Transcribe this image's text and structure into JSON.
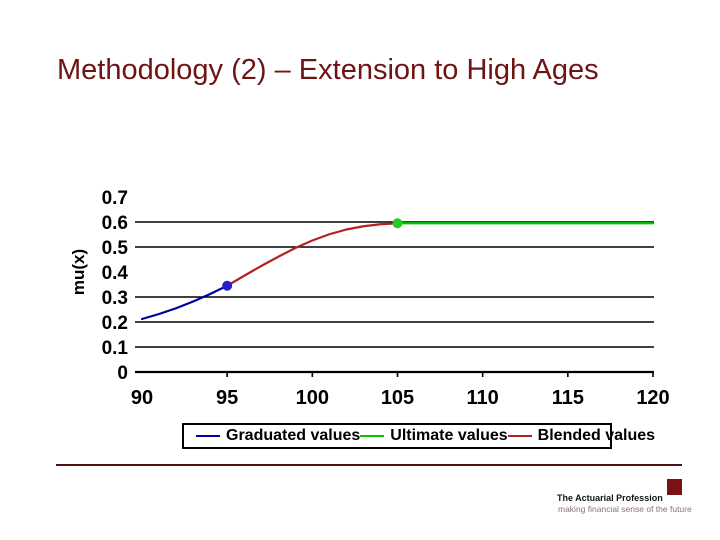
{
  "slide": {
    "title": "Methodology (2) – Extension to High Ages"
  },
  "chart_data": {
    "type": "line",
    "title": "",
    "xlabel": "",
    "ylabel": "mu(x)",
    "xlim": [
      90,
      120
    ],
    "ylim": [
      0,
      0.7
    ],
    "x_ticks": [
      90,
      95,
      100,
      105,
      110,
      115,
      120
    ],
    "y_ticks": [
      0,
      0.1,
      0.2,
      0.3,
      0.4,
      0.5,
      0.6,
      0.7
    ],
    "gridlines": [
      0.1,
      0.2,
      0.3,
      0.5,
      0.6
    ],
    "grid_on": true,
    "legend_position": "bottom",
    "series": [
      {
        "name": "Graduated values",
        "color": "#00009e",
        "x": [
          90,
          91,
          92,
          93,
          94,
          95
        ],
        "y": [
          0.212,
          0.232,
          0.255,
          0.282,
          0.312,
          0.345
        ],
        "marker": {
          "x": 95,
          "y": 0.345,
          "color": "#2222cc"
        }
      },
      {
        "name": "Ultimate values",
        "color": "#00c800",
        "x": [
          105,
          120
        ],
        "y": [
          0.595,
          0.595
        ],
        "marker": {
          "x": 105,
          "y": 0.595,
          "color": "#22cc22"
        }
      },
      {
        "name": "Blended values",
        "color": "#b22222",
        "x": [
          95,
          96,
          97,
          98,
          99,
          100,
          101,
          102,
          103,
          104,
          105
        ],
        "y": [
          0.345,
          0.385,
          0.424,
          0.461,
          0.496,
          0.526,
          0.551,
          0.57,
          0.583,
          0.591,
          0.595
        ]
      }
    ]
  },
  "footer": {
    "logo_title": "The Actuarial Profession",
    "logo_subtitle": "making financial sense of the future"
  },
  "colors": {
    "title_text": "#6e1414",
    "footer_rule": "#4e1212",
    "logo_square": "#7a1414",
    "axis": "#000000"
  }
}
